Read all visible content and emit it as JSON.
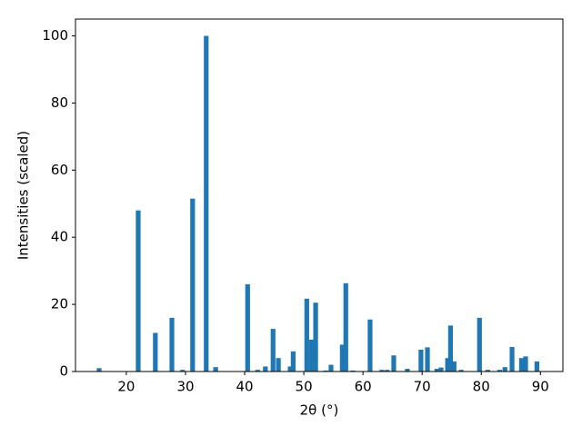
{
  "chart_data": {
    "type": "bar",
    "xlabel": "2θ (°)",
    "ylabel": "Intensities (scaled)",
    "color": "#1f77b4",
    "x": [
      15.4,
      22.0,
      24.9,
      27.7,
      29.5,
      31.2,
      33.5,
      35.1,
      40.5,
      42.2,
      43.5,
      44.8,
      45.7,
      47.7,
      48.2,
      50.5,
      51.3,
      52.0,
      53.7,
      54.6,
      56.5,
      57.1,
      58.3,
      61.2,
      63.2,
      64.1,
      65.2,
      67.5,
      69.8,
      70.9,
      72.5,
      73.2,
      74.3,
      74.8,
      75.4,
      76.6,
      79.7,
      81.1,
      83.1,
      84.0,
      85.2,
      86.8,
      87.5,
      89.4
    ],
    "values": [
      1,
      48,
      11.5,
      16,
      0.5,
      51.5,
      100,
      1.3,
      26,
      0.5,
      1.5,
      12.7,
      4,
      1.5,
      6,
      21.7,
      9.5,
      20.5,
      0.3,
      2,
      8,
      26.3,
      0.3,
      15.5,
      0.5,
      0.5,
      4.8,
      0.8,
      6.5,
      7.2,
      0.8,
      1.2,
      4,
      13.7,
      3,
      0.5,
      16,
      0.5,
      0.5,
      1.3,
      7.3,
      4,
      4.5,
      3
    ],
    "xlim": [
      11.4,
      93.8
    ],
    "ylim": [
      0,
      105
    ],
    "xticks": [
      20,
      30,
      40,
      50,
      60,
      70,
      80,
      90
    ],
    "yticks": [
      0,
      20,
      40,
      60,
      80,
      100
    ]
  }
}
